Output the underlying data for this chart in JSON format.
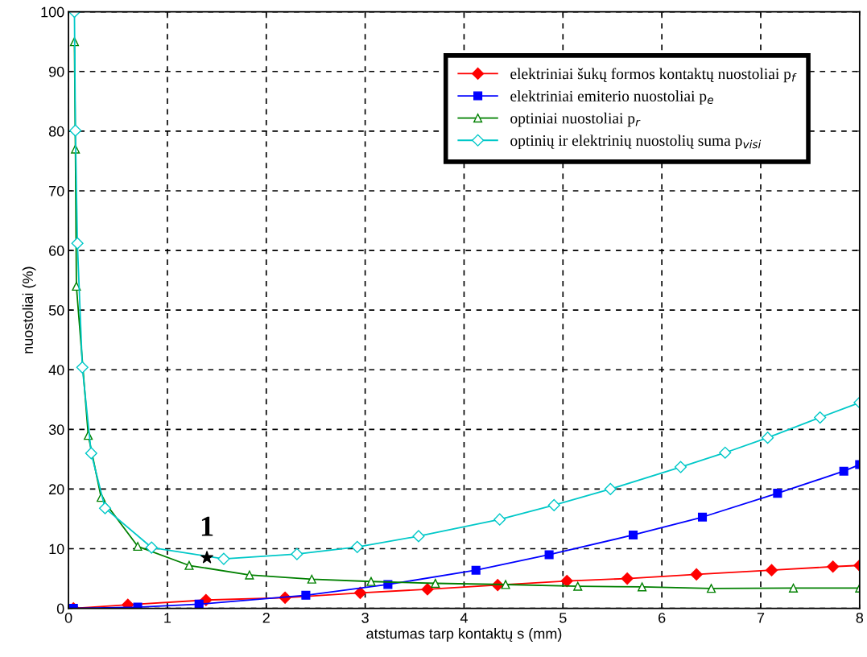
{
  "chart_data": {
    "type": "line",
    "xlabel": "atstumas tarp kontaktų s (mm)",
    "ylabel": "nuostoliai (%)",
    "xlim": [
      0,
      8
    ],
    "ylim": [
      0,
      100
    ],
    "xticks": [
      0,
      1,
      2,
      3,
      4,
      5,
      6,
      7,
      8
    ],
    "yticks": [
      0,
      10,
      20,
      30,
      40,
      50,
      60,
      70,
      80,
      90,
      100
    ],
    "grid": true,
    "legend": "top right",
    "line_style": "solid",
    "series": [
      {
        "name": "elektriniai šukų formos kontaktų nuostoliai p$_{f}$",
        "color": "#ff0000",
        "marker": "diamond",
        "x": [
          0.05,
          0.6,
          1.39,
          2.19,
          2.95,
          3.63,
          4.34,
          5.04,
          5.65,
          6.35,
          7.11,
          7.73,
          8
        ],
        "values": [
          0,
          0.6,
          1.4,
          1.8,
          2.6,
          3.2,
          3.9,
          4.6,
          5.0,
          5.7,
          6.4,
          7.0,
          7.2
        ]
      },
      {
        "name": "elektriniai emiterio nuostoliai p$_{e}$",
        "color": "#0000ff",
        "marker": "square",
        "x": [
          0.05,
          0.7,
          1.32,
          2.4,
          3.23,
          4.12,
          4.86,
          5.71,
          6.41,
          7.17,
          7.84,
          8
        ],
        "values": [
          0,
          0.2,
          0.7,
          2.2,
          4.0,
          6.4,
          9.0,
          12.3,
          15.3,
          19.3,
          23.0,
          24.1
        ]
      },
      {
        "name": "optiniai nuostoliai p$_{r}$",
        "color": "#008000",
        "marker": "triangle",
        "x": [
          0.06,
          0.07,
          0.08,
          0.2,
          0.33,
          0.7,
          1.22,
          1.83,
          2.46,
          3.06,
          3.71,
          4.42,
          5.15,
          5.8,
          6.5,
          7.33,
          8
        ],
        "values": [
          95,
          77,
          54,
          29,
          18.6,
          10.4,
          7.2,
          5.6,
          4.9,
          4.5,
          4.2,
          4.0,
          3.7,
          3.6,
          3.35,
          3.4,
          3.4
        ]
      },
      {
        "name": "optinių ir elektrinių nuostolių suma p$_{visi}$",
        "color": "#00c8c8",
        "marker": "diamond",
        "x": [
          0.06,
          0.07,
          0.09,
          0.14,
          0.23,
          0.37,
          0.84,
          1.57,
          2.31,
          2.92,
          3.54,
          4.36,
          4.91,
          5.48,
          6.19,
          6.64,
          7.07,
          7.6,
          8
        ],
        "values": [
          100,
          80.1,
          61.2,
          40.4,
          26.0,
          16.8,
          10.2,
          8.3,
          9.1,
          10.3,
          12.1,
          14.9,
          17.3,
          20.0,
          23.7,
          26.1,
          28.6,
          32.0,
          34.5
        ]
      },
      {
        "type": "scatter",
        "color": "#000000",
        "marker": "star",
        "x": [
          1.4
        ],
        "values": [
          8.5
        ]
      }
    ],
    "annotations": [
      {
        "text": "1",
        "x": 1.4,
        "y": 8.5
      }
    ]
  }
}
